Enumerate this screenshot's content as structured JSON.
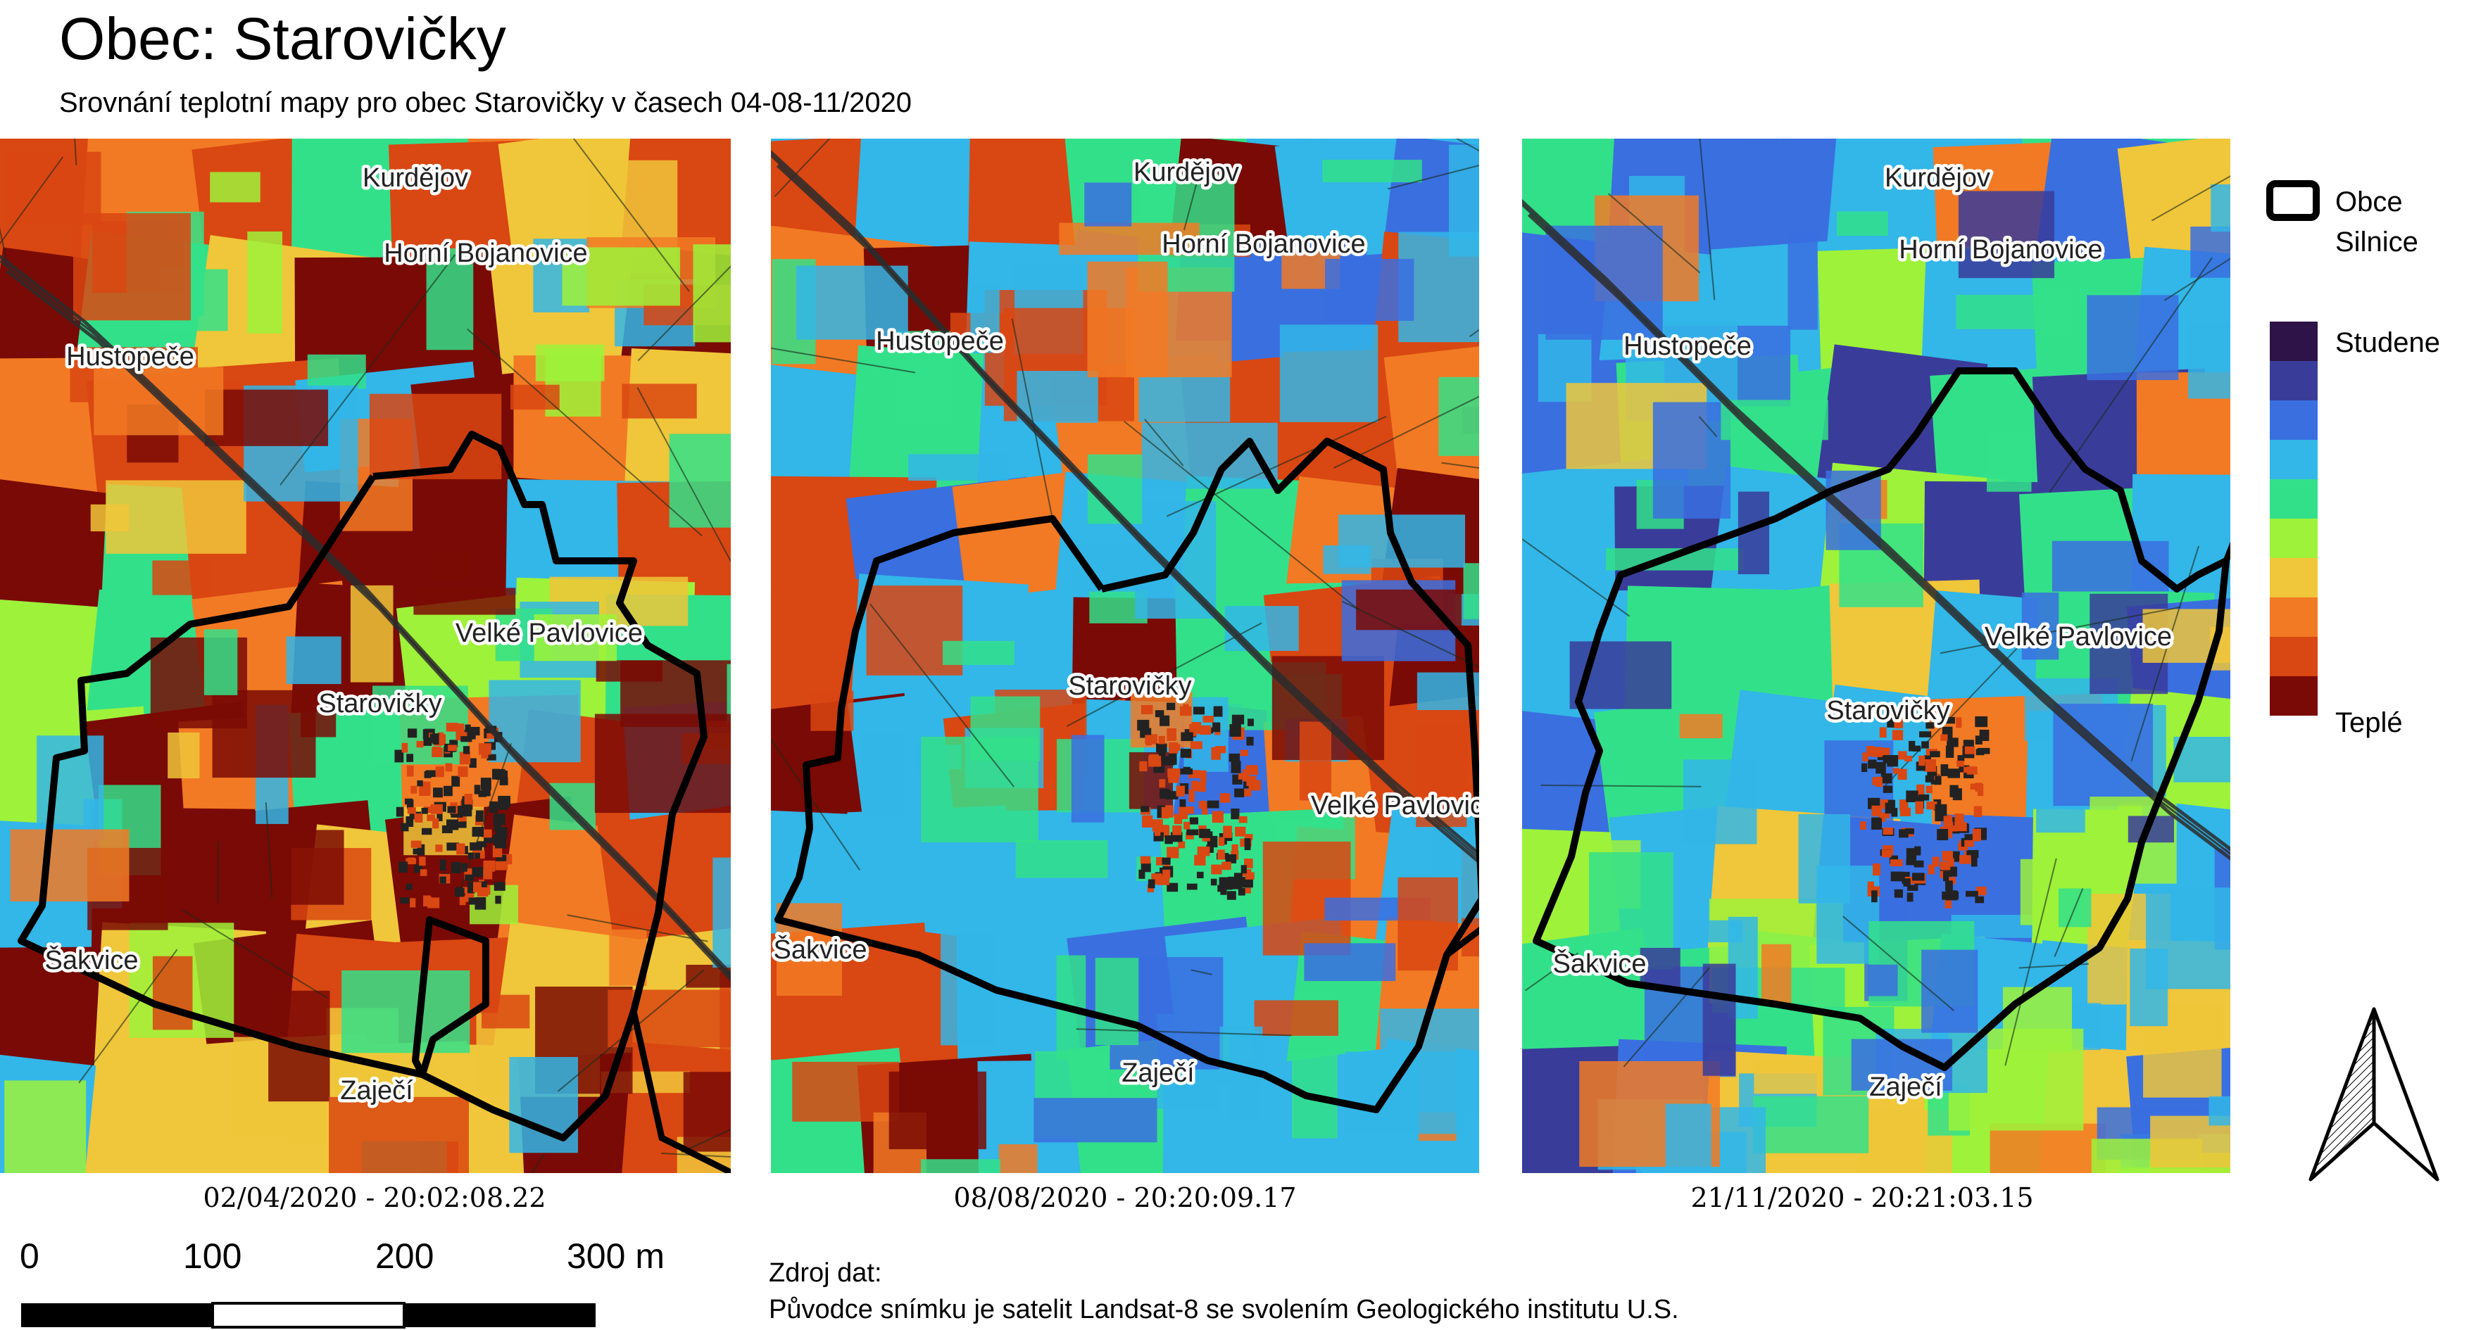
{
  "title": "Obec: Starovičky",
  "subtitle": "Srovnání teplotní mapy pro obec Starovičky v časech 04-08-11/2020",
  "palette": {
    "cold_to_warm": [
      "#2d1347",
      "#3a3c9a",
      "#3a6fe0",
      "#33b6e8",
      "#33e08a",
      "#9ef23a",
      "#f0c63a",
      "#f27a24",
      "#d94712",
      "#7a0a05"
    ]
  },
  "panels": [
    {
      "caption": "02/04/2020 - 20:02:08.22",
      "field_tone": "warm",
      "places": {
        "kurdejov": "Kurdějov",
        "horni_bojanovice": "Horní Bojanovice",
        "hustopece": "Hustopeče",
        "velke_pavlovice": "Velké Pavlovice",
        "starovicky": "Starovičky",
        "sakvice": "Šakvice",
        "zajeci": "Zaječí"
      }
    },
    {
      "caption": "08/08/2020 - 20:20:09.17",
      "field_tone": "cool",
      "places": {
        "kurdejov": "Kurdějov",
        "horni_bojanovice": "Horní Bojanovice",
        "hustopece": "Hustopeče",
        "velke_pavlovice": "Velké Pavlovice",
        "starovicky": "Starovičky",
        "sakvice": "Šakvice",
        "zajeci": "Zaječí"
      }
    },
    {
      "caption": "21/11/2020 - 20:21:03.15",
      "field_tone": "cold",
      "places": {
        "kurdejov": "Kurdějov",
        "horni_bojanovice": "Horní Bojanovice",
        "hustopece": "Hustopeče",
        "velke_pavlovice": "Velké Pavlovice",
        "starovicky": "Starovičky",
        "sakvice": "Šakvice",
        "zajeci": "Zaječí"
      }
    }
  ],
  "legend": {
    "obce_label": "Obce",
    "silnice_label": "Silnice",
    "cold_label": "Studene",
    "warm_label": "Teplé",
    "swatches": [
      "#2d1347",
      "#3a3c9a",
      "#3a6fe0",
      "#33b6e8",
      "#33e08a",
      "#9ef23a",
      "#f0c63a",
      "#f27a24",
      "#d94712",
      "#7a0a05"
    ]
  },
  "scalebar": {
    "labels": [
      "0",
      "100",
      "200",
      "300 m"
    ]
  },
  "source": {
    "heading": "Zdroj dat:",
    "text": "Původce snímku je satelit Landsat-8 se svolením Geologického institutu U.S."
  },
  "north_arrow": {
    "icon": "north-arrow-icon"
  }
}
